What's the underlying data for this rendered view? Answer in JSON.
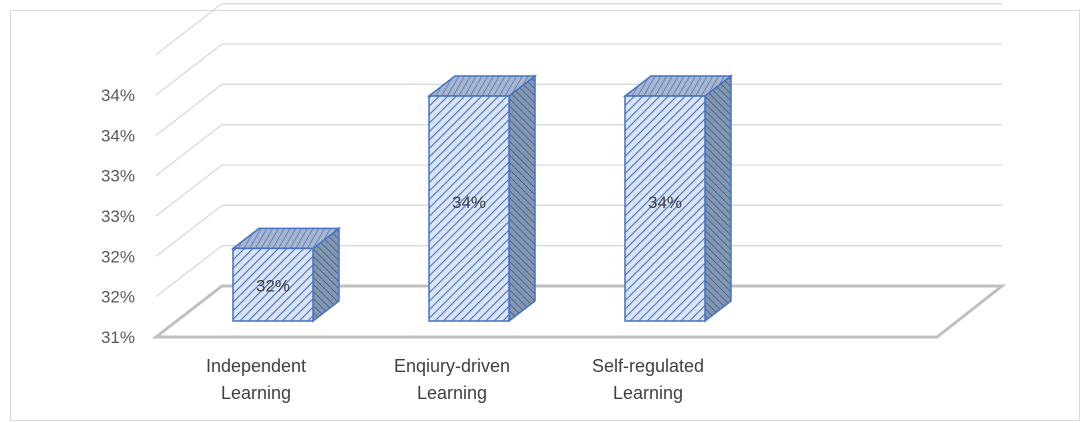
{
  "chart_data": {
    "type": "bar",
    "style": "3d-column",
    "title": "",
    "xlabel": "",
    "ylabel": "",
    "categories": [
      [
        "Independent",
        "Learning"
      ],
      [
        "Enqiury-driven",
        "Learning"
      ],
      [
        "Self-regulated",
        "Learning"
      ]
    ],
    "values": [
      32.0,
      34.1,
      34.1
    ],
    "data_labels": [
      "32%",
      "34%",
      "34%"
    ],
    "y_tick_labels": [
      "31%",
      "32%",
      "32%",
      "33%",
      "33%",
      "34%",
      "34%"
    ],
    "ylim": [
      31.0,
      34.5
    ],
    "grid": true,
    "legend": "none",
    "colors": {
      "bar_fill": "#dbe5f7",
      "bar_hatch": "#4472c4",
      "bar_edge": "#4472c4",
      "bar_side": "#8497b0",
      "bar_top": "#a6b6d3",
      "gridline": "#d9d9d9",
      "floor": "#bfbfbf"
    }
  }
}
